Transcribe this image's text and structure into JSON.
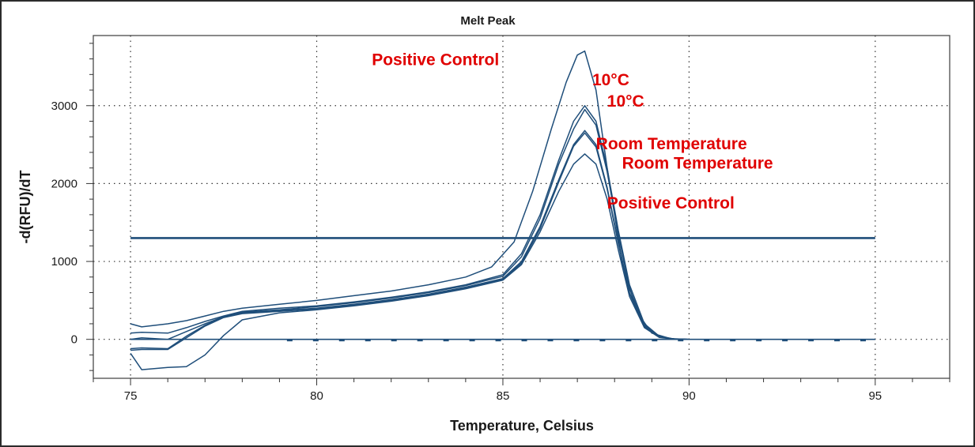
{
  "chart_data": {
    "type": "line",
    "title": "Melt Peak",
    "xlabel": "Temperature, Celsius",
    "ylabel": "-d(RFU)/dT",
    "xlim": [
      74,
      97
    ],
    "ylim": [
      -500,
      3900
    ],
    "xticks": [
      75,
      80,
      85,
      90,
      95
    ],
    "yticks": [
      0,
      1000,
      2000,
      3000
    ],
    "grid": "dotted",
    "line_color": "#1f4e7a",
    "annotation_color": "#e00000",
    "threshold": 1300,
    "baseline": 0,
    "series": [
      {
        "x": [
          75,
          75.3,
          76,
          76.5,
          77,
          77.5,
          78,
          79,
          80,
          81,
          82,
          83,
          84,
          84.7,
          85.3,
          85.8,
          86.3,
          86.7,
          87,
          87.2,
          87.5,
          87.8,
          88.2,
          88.6,
          89,
          89.5,
          90,
          91,
          95
        ],
        "y": [
          200,
          160,
          200,
          240,
          300,
          360,
          400,
          450,
          500,
          560,
          620,
          700,
          800,
          930,
          1250,
          1900,
          2700,
          3300,
          3650,
          3700,
          3200,
          2200,
          1000,
          350,
          80,
          10,
          0,
          0,
          0
        ]
      },
      {
        "x": [
          75,
          75.3,
          76,
          76.5,
          77,
          77.5,
          78,
          79,
          80,
          81,
          82,
          83,
          84,
          85,
          85.5,
          86,
          86.5,
          86.9,
          87.2,
          87.5,
          87.8,
          88.1,
          88.4,
          88.8,
          89.2,
          89.6,
          90,
          91,
          95
        ],
        "y": [
          80,
          90,
          80,
          150,
          230,
          300,
          360,
          400,
          430,
          480,
          540,
          610,
          700,
          830,
          1100,
          1600,
          2300,
          2800,
          3000,
          2800,
          2200,
          1400,
          700,
          200,
          40,
          5,
          0,
          0,
          0
        ]
      },
      {
        "x": [
          75,
          75.3,
          76,
          76.5,
          77,
          77.5,
          78,
          79,
          80,
          81,
          82,
          83,
          84,
          85,
          85.5,
          86,
          86.5,
          86.9,
          87.2,
          87.5,
          87.8,
          88.1,
          88.4,
          88.8,
          89.2,
          89.6,
          90,
          91,
          95
        ],
        "y": [
          0,
          20,
          0,
          100,
          200,
          290,
          350,
          380,
          420,
          470,
          530,
          600,
          690,
          810,
          1060,
          1550,
          2250,
          2700,
          2950,
          2750,
          2150,
          1350,
          650,
          180,
          30,
          5,
          0,
          0,
          0
        ]
      },
      {
        "x": [
          75,
          75.3,
          76,
          76.5,
          77,
          77.5,
          78,
          79,
          80,
          81,
          82,
          83,
          84,
          85,
          85.5,
          86,
          86.5,
          86.9,
          87.2,
          87.5,
          87.8,
          88.1,
          88.4,
          88.8,
          89.2,
          89.6,
          90,
          91,
          95
        ],
        "y": [
          -120,
          -110,
          -120,
          40,
          180,
          290,
          340,
          370,
          400,
          450,
          510,
          580,
          670,
          780,
          1000,
          1450,
          2050,
          2500,
          2680,
          2500,
          1950,
          1250,
          600,
          170,
          30,
          5,
          0,
          0,
          0
        ]
      },
      {
        "x": [
          75,
          75.3,
          76,
          76.5,
          77,
          77.5,
          78,
          79,
          80,
          81,
          82,
          83,
          84,
          85,
          85.5,
          86,
          86.5,
          86.9,
          87.2,
          87.5,
          87.8,
          88.1,
          88.4,
          88.8,
          89.2,
          89.6,
          90,
          91,
          95
        ],
        "y": [
          -140,
          -130,
          -130,
          20,
          170,
          280,
          330,
          360,
          390,
          440,
          500,
          570,
          660,
          770,
          980,
          1420,
          2020,
          2480,
          2650,
          2470,
          1930,
          1230,
          590,
          160,
          30,
          5,
          0,
          0,
          0
        ]
      },
      {
        "x": [
          75,
          75.3,
          76,
          76.5,
          77,
          77.5,
          78,
          79,
          80,
          81,
          82,
          83,
          84,
          85,
          85.5,
          86,
          86.5,
          86.9,
          87.2,
          87.5,
          87.8,
          88.1,
          88.4,
          88.8,
          89.2,
          89.6,
          90,
          91,
          95
        ],
        "y": [
          -180,
          -390,
          -360,
          -350,
          -200,
          50,
          250,
          340,
          380,
          430,
          490,
          560,
          650,
          760,
          960,
          1380,
          1900,
          2250,
          2380,
          2250,
          1800,
          1150,
          550,
          150,
          25,
          5,
          0,
          0,
          0
        ]
      }
    ],
    "annotations": [
      {
        "text": "Positive Control",
        "x": 84.9,
        "y": 3520,
        "anchor": "end"
      },
      {
        "text": "10°C",
        "x": 87.4,
        "y": 3260,
        "anchor": "start"
      },
      {
        "text": "10°C",
        "x": 87.8,
        "y": 2990,
        "anchor": "start"
      },
      {
        "text": "Room Temperature",
        "x": 87.5,
        "y": 2440,
        "anchor": "start"
      },
      {
        "text": "Room Temperature",
        "x": 88.2,
        "y": 2190,
        "anchor": "start"
      },
      {
        "text": "Positive Control",
        "x": 87.8,
        "y": 1680,
        "anchor": "start"
      }
    ]
  }
}
